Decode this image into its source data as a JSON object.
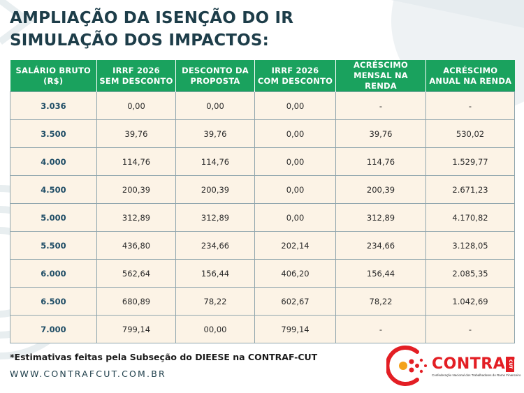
{
  "title": {
    "line1": "AMPLIAÇÃO DA ISENÇÃO DO IR",
    "line2": "SIMULAÇÃO DOS IMPACTOS:"
  },
  "table": {
    "headers": [
      {
        "line1": "SALÁRIO BRUTO",
        "line2": "(R$)"
      },
      {
        "line1": "IRRF 2026",
        "line2": "SEM DESCONTO"
      },
      {
        "line1": "DESCONTO DA",
        "line2": "PROPOSTA"
      },
      {
        "line1": "IRRF 2026",
        "line2": "COM DESCONTO"
      },
      {
        "line1": "ACRÉSCIMO",
        "line2": "MENSAL NA RENDA"
      },
      {
        "line1": "ACRÉSCIMO",
        "line2": "ANUAL NA RENDA"
      }
    ],
    "rows": [
      [
        "3.036",
        "0,00",
        "0,00",
        "0,00",
        "-",
        "-"
      ],
      [
        "3.500",
        "39,76",
        "39,76",
        "0,00",
        "39,76",
        "530,02"
      ],
      [
        "4.000",
        "114,76",
        "114,76",
        "0,00",
        "114,76",
        "1.529,77"
      ],
      [
        "4.500",
        "200,39",
        "200,39",
        "0,00",
        "200,39",
        "2.671,23"
      ],
      [
        "5.000",
        "312,89",
        "312,89",
        "0,00",
        "312,89",
        "4.170,82"
      ],
      [
        "5.500",
        "436,80",
        "234,66",
        "202,14",
        "234,66",
        "3.128,05"
      ],
      [
        "6.000",
        "562,64",
        "156,44",
        "406,20",
        "156,44",
        "2.085,35"
      ],
      [
        "6.500",
        "680,89",
        "78,22",
        "602,67",
        "78,22",
        "1.042,69"
      ],
      [
        "7.000",
        "799,14",
        "00,00",
        "799,14",
        "-",
        "-"
      ]
    ]
  },
  "footnote": "*Estimativas feitas pela Subseção do DIEESE na CONTRAF-CUT",
  "website": "WWW.CONTRAFCUT.COM.BR",
  "logo": {
    "name": "CONTRAF",
    "badge": "CUT",
    "tagline": "Confederação Nacional dos Trabalhadores do Ramo Financeiro"
  },
  "colors": {
    "title": "#1d3d49",
    "header_bg": "#1aa25e",
    "cell_bg": "#fcf3e6",
    "salary_text": "#1f4d66",
    "brand_red": "#e31e24"
  }
}
